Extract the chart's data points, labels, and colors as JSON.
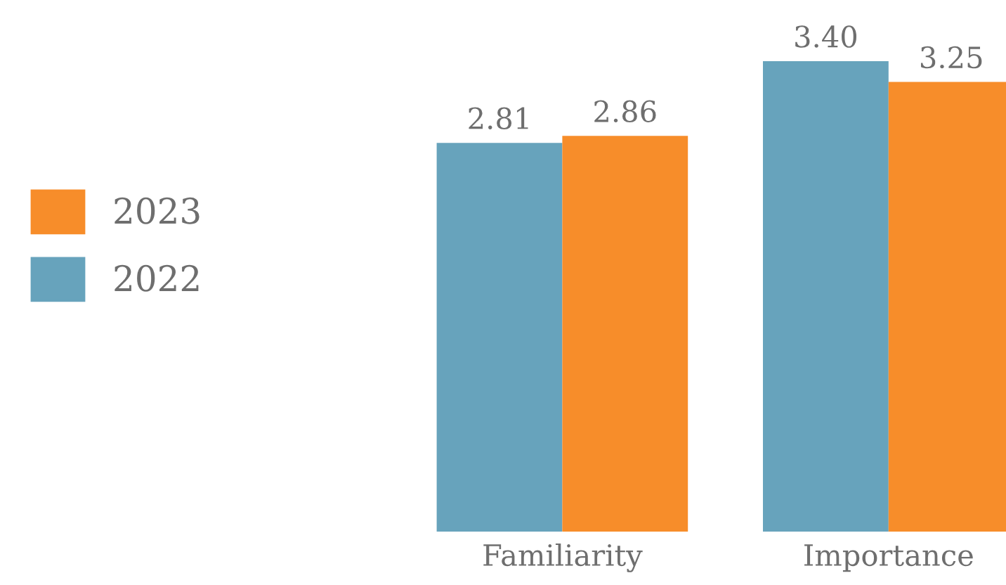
{
  "chart_data": {
    "type": "bar",
    "categories": [
      "Familiarity",
      "Importance"
    ],
    "series": [
      {
        "name": "2022",
        "color": "#67a3bc",
        "values": [
          2.81,
          3.4
        ],
        "value_labels": [
          "2.81",
          "3.40"
        ]
      },
      {
        "name": "2023",
        "color": "#f78d2a",
        "values": [
          2.86,
          3.25
        ],
        "value_labels": [
          "2.86",
          "3.25"
        ]
      }
    ],
    "legend": "left",
    "grid": false
  }
}
